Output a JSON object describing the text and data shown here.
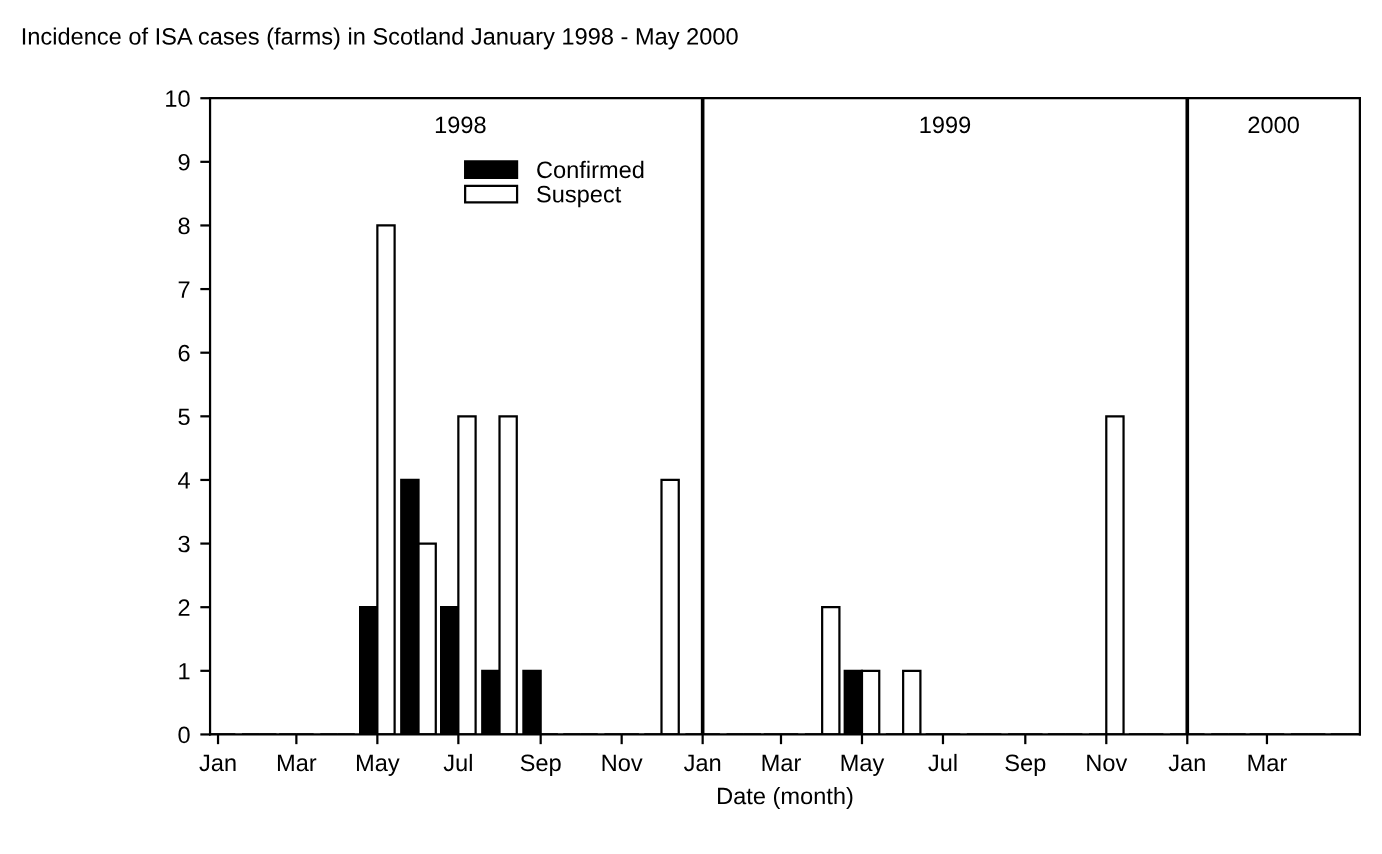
{
  "chart_data": {
    "type": "bar",
    "title": "Incidence of ISA cases (farms) in Scotland January 1998 - May 2000",
    "xlabel": "Date (month)",
    "x": [
      "1998-01",
      "1998-02",
      "1998-03",
      "1998-04",
      "1998-05",
      "1998-06",
      "1998-07",
      "1998-08",
      "1998-09",
      "1998-10",
      "1998-11",
      "1998-12",
      "1999-01",
      "1999-02",
      "1999-03",
      "1999-04",
      "1999-05",
      "1999-06",
      "1999-07",
      "1999-08",
      "1999-09",
      "1999-10",
      "1999-11",
      "1999-12",
      "2000-01",
      "2000-02",
      "2000-03",
      "2000-04",
      "2000-05"
    ],
    "series": [
      {
        "name": "Confirmed",
        "color": "#000000",
        "values": [
          0,
          0,
          0,
          0,
          2,
          4,
          2,
          1,
          1,
          0,
          0,
          0,
          0,
          0,
          0,
          0,
          1,
          0,
          0,
          0,
          0,
          0,
          0,
          0,
          0,
          0,
          0,
          0,
          0
        ]
      },
      {
        "name": "Suspect",
        "color": "#ffffff",
        "values": [
          0,
          0,
          0,
          0,
          8,
          3,
          5,
          5,
          0,
          0,
          0,
          4,
          0,
          0,
          0,
          2,
          1,
          1,
          0,
          0,
          0,
          0,
          5,
          0,
          0,
          0,
          0,
          0,
          0
        ]
      }
    ],
    "xlim": [
      "1997-12-26",
      "2000-05-10"
    ],
    "xticks": [
      {
        "value": "1998-01",
        "label": "Jan"
      },
      {
        "value": "1998-03",
        "label": "Mar"
      },
      {
        "value": "1998-05",
        "label": "May"
      },
      {
        "value": "1998-07",
        "label": "Jul"
      },
      {
        "value": "1998-09",
        "label": "Sep"
      },
      {
        "value": "1998-11",
        "label": "Nov"
      },
      {
        "value": "1999-01",
        "label": "Jan"
      },
      {
        "value": "1999-03",
        "label": "Mar"
      },
      {
        "value": "1999-05",
        "label": "May"
      },
      {
        "value": "1999-07",
        "label": "Jul"
      },
      {
        "value": "1999-09",
        "label": "Sep"
      },
      {
        "value": "1999-11",
        "label": "Nov"
      },
      {
        "value": "2000-01",
        "label": "Jan"
      },
      {
        "value": "2000-03",
        "label": "Mar"
      }
    ],
    "ylim": [
      0,
      10
    ],
    "yticks": [
      0,
      1,
      2,
      3,
      4,
      5,
      6,
      7,
      8,
      9,
      10
    ],
    "ref_lines": [
      {
        "axis": "x",
        "value": "1999-01",
        "color": "#000000"
      },
      {
        "axis": "x",
        "value": "2000-01",
        "color": "#000000"
      }
    ],
    "annotations": [
      "1998",
      "1999",
      "2000"
    ],
    "grid": false,
    "legend": "top"
  }
}
